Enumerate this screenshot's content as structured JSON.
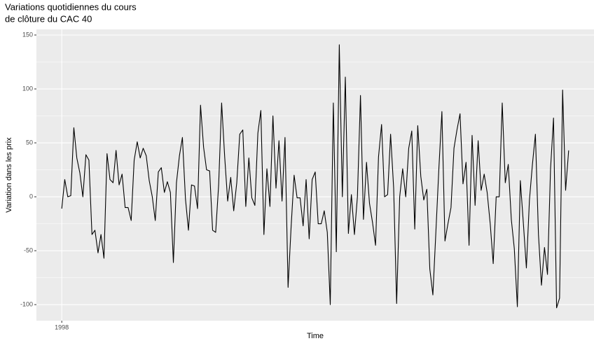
{
  "chart_data": {
    "type": "line",
    "title": [
      "Variations quotidiennes du cours",
      "de clôture du CAC 40"
    ],
    "x_label": "Time",
    "y_label": "Variation dans les prix",
    "x": [
      1998,
      1998.0038,
      1998.0077,
      1998.0115,
      1998.0154,
      1998.0192,
      1998.0231,
      1998.0269,
      1998.0308,
      1998.0346,
      1998.0385,
      1998.0423,
      1998.0462,
      1998.05,
      1998.0538,
      1998.0577,
      1998.0615,
      1998.0654,
      1998.0692,
      1998.0731,
      1998.0769,
      1998.0808,
      1998.0846,
      1998.0885,
      1998.0923,
      1998.0962,
      1998.1,
      1998.1038,
      1998.1077,
      1998.1115,
      1998.1154,
      1998.1192,
      1998.1231,
      1998.1269,
      1998.1308,
      1998.1346,
      1998.1385,
      1998.1423,
      1998.1462,
      1998.15,
      1998.1538,
      1998.1577,
      1998.1615,
      1998.1654,
      1998.1692,
      1998.1731,
      1998.1769,
      1998.1808,
      1998.1846,
      1998.1885,
      1998.1923,
      1998.1962,
      1998.2,
      1998.2038,
      1998.2077,
      1998.2115,
      1998.2154,
      1998.2192,
      1998.2231,
      1998.2269,
      1998.2308,
      1998.2346,
      1998.2385,
      1998.2423,
      1998.2462,
      1998.25,
      1998.2538,
      1998.2577,
      1998.2615,
      1998.2654,
      1998.2692,
      1998.2731,
      1998.2769,
      1998.2808,
      1998.2846,
      1998.2885,
      1998.2923,
      1998.2962,
      1998.3,
      1998.3038,
      1998.3077,
      1998.3115,
      1998.3154,
      1998.3192,
      1998.3231,
      1998.3269,
      1998.3308,
      1998.3346,
      1998.3385,
      1998.3423,
      1998.3462,
      1998.35,
      1998.3538,
      1998.3577,
      1998.3615,
      1998.3654,
      1998.3692,
      1998.3731,
      1998.3769,
      1998.3808,
      1998.3846,
      1998.3885,
      1998.3923,
      1998.3962,
      1998.4,
      1998.4038,
      1998.4077,
      1998.4115,
      1998.4154,
      1998.4192,
      1998.4231,
      1998.4269,
      1998.4308,
      1998.4346,
      1998.4385,
      1998.4423,
      1998.4462,
      1998.45,
      1998.4538,
      1998.4577,
      1998.4615,
      1998.4654,
      1998.4692,
      1998.4731,
      1998.4769,
      1998.4808,
      1998.4846,
      1998.4885,
      1998.4923,
      1998.4962,
      1998.5,
      1998.5038,
      1998.5077,
      1998.5115,
      1998.5154,
      1998.5192,
      1998.5231,
      1998.5269,
      1998.5308,
      1998.5346,
      1998.5385,
      1998.5423,
      1998.5462,
      1998.55,
      1998.5538,
      1998.5577,
      1998.5615,
      1998.5654,
      1998.5692,
      1998.5731,
      1998.5769,
      1998.5808,
      1998.5846,
      1998.5885,
      1998.5923,
      1998.5962,
      1998.6,
      1998.6038,
      1998.6077,
      1998.6115,
      1998.6154,
      1998.6192,
      1998.6231,
      1998.6269,
      1998.6308,
      1998.6346,
      1998.6385,
      1998.6423,
      1998.6462
    ],
    "series": [
      {
        "color": "#000000",
        "values": [
          -11,
          16,
          0,
          1,
          64,
          36,
          22,
          0,
          39,
          34,
          -35,
          -31,
          -52,
          -35,
          -57,
          40,
          16,
          13,
          43,
          11,
          21,
          -10,
          -10,
          -22,
          34,
          51,
          36,
          45,
          38,
          15,
          0,
          -22,
          23,
          27,
          4,
          14,
          4,
          -61,
          13,
          38,
          55,
          -2,
          -31,
          11,
          10,
          -11,
          85,
          46,
          25,
          24,
          -31,
          -33,
          11,
          87,
          37,
          -4,
          18,
          -13,
          13,
          58,
          62,
          -9,
          36,
          -1,
          -8,
          59,
          80,
          -35,
          26,
          -9,
          75,
          8,
          52,
          -4,
          55,
          -84,
          -29,
          20,
          -1,
          -1,
          -27,
          16,
          -39,
          16,
          23,
          -25,
          -25,
          -13,
          -33,
          -100,
          87,
          -51,
          141,
          0,
          111,
          -34,
          2,
          -35,
          0,
          94,
          -21,
          32,
          -6,
          -24,
          -45,
          37,
          67,
          0,
          2,
          58,
          8,
          -99,
          0,
          26,
          0,
          45,
          61,
          -30,
          66,
          19,
          -3,
          7,
          -67,
          -91,
          -33,
          27,
          79,
          -41,
          -25,
          -10,
          45,
          62,
          77,
          12,
          32,
          -45,
          57,
          -8,
          52,
          6,
          21,
          4,
          -25,
          -62,
          0,
          0,
          87,
          13,
          30,
          -21,
          -48,
          -102,
          15,
          -25,
          -66,
          -3,
          30,
          58,
          -35,
          -82,
          -47,
          -72,
          26,
          73,
          -103,
          -94,
          99,
          6,
          43
        ]
      }
    ],
    "xlim": [
      1997.9677,
      1998.6785
    ],
    "xticks": [
      1998
    ],
    "ylim": [
      -114.9,
      155.2
    ],
    "yticks": [
      -100,
      -50,
      0,
      50,
      100,
      150
    ],
    "grid": true
  }
}
